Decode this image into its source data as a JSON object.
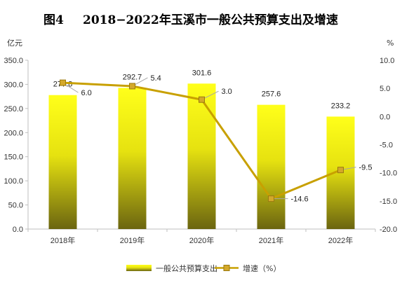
{
  "figure": {
    "number": "图4",
    "title": "2018−2022年玉溪市一般公共预算支出及增速"
  },
  "axes": {
    "left_unit": "亿元",
    "right_unit": "%"
  },
  "chart_data": {
    "type": "bar",
    "categories": [
      "2018年",
      "2019年",
      "2020年",
      "2021年",
      "2022年"
    ],
    "series": [
      {
        "name": "一般公共预算支出",
        "kind": "bar",
        "axis": "left",
        "values": [
          277.8,
          292.7,
          301.6,
          257.6,
          233.2
        ],
        "labels": [
          "277.8",
          "292.7",
          "301.6",
          "257.6",
          "233.2"
        ],
        "color_top": "#ffff1a",
        "color_bottom": "#6b6510"
      },
      {
        "name": "增速（%）",
        "kind": "line",
        "axis": "right",
        "values": [
          6.0,
          5.4,
          3.0,
          -14.6,
          -9.5
        ],
        "labels": [
          "6.0",
          "5.4",
          "3.0",
          "-14.6",
          "-9.5"
        ],
        "color": "#c8a000",
        "marker_color": "#d4a82a"
      }
    ],
    "left_ticks": [
      "0.0",
      "50.0",
      "100.0",
      "150.0",
      "200.0",
      "250.0",
      "300.0",
      "350.0"
    ],
    "right_ticks": [
      "10.0",
      "5.0",
      "0.0",
      "-5.0",
      "-10.0",
      "-15.0",
      "-20.0"
    ],
    "ylim_left": [
      0,
      350
    ],
    "ylim_right": [
      -20,
      10
    ],
    "grid": false,
    "legend_position": "bottom-center"
  }
}
